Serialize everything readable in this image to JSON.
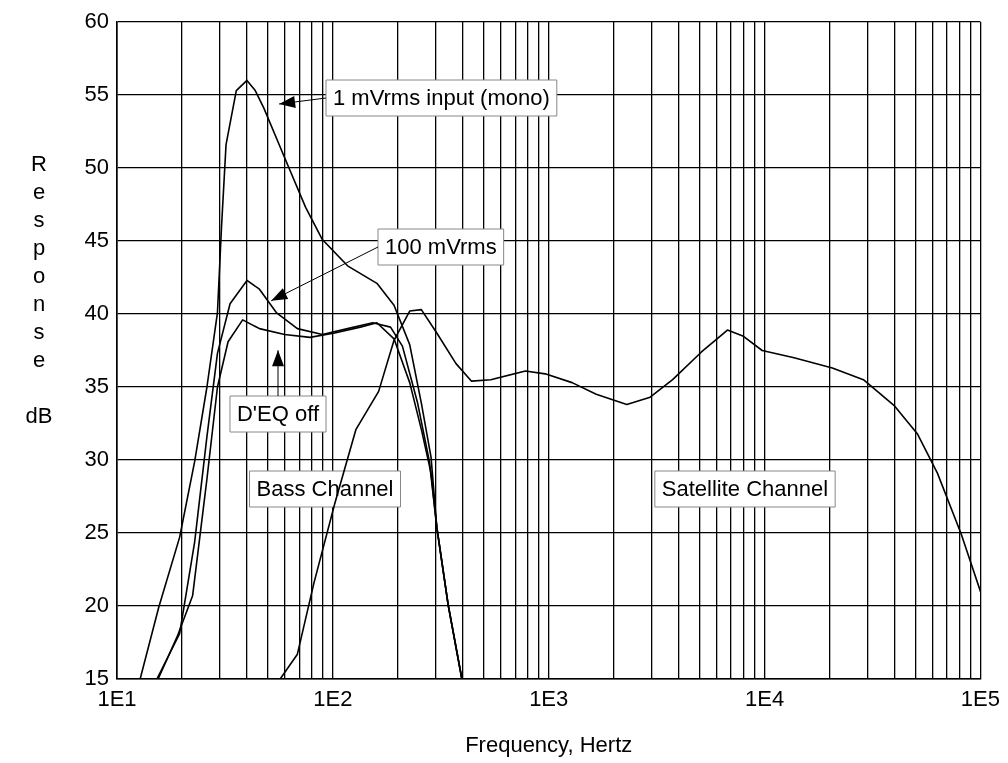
{
  "chart_data": {
    "type": "line",
    "xlabel": "Frequency, Hertz",
    "ylabel": "Response dB",
    "log": "x",
    "grid": true,
    "marker": "none",
    "line_style": "solid",
    "xlim": [
      10,
      100000
    ],
    "ylim": [
      15,
      60
    ],
    "xticks": [
      {
        "value": 10,
        "label": "1E1"
      },
      {
        "value": 20,
        "label": null
      },
      {
        "value": 30,
        "label": null
      },
      {
        "value": 40,
        "label": null
      },
      {
        "value": 50,
        "label": null
      },
      {
        "value": 60,
        "label": null
      },
      {
        "value": 70,
        "label": null
      },
      {
        "value": 80,
        "label": null
      },
      {
        "value": 90,
        "label": null
      },
      {
        "value": 100,
        "label": "1E2"
      },
      {
        "value": 200,
        "label": null
      },
      {
        "value": 300,
        "label": null
      },
      {
        "value": 400,
        "label": null
      },
      {
        "value": 500,
        "label": null
      },
      {
        "value": 600,
        "label": null
      },
      {
        "value": 700,
        "label": null
      },
      {
        "value": 800,
        "label": null
      },
      {
        "value": 900,
        "label": null
      },
      {
        "value": 1000,
        "label": "1E3"
      },
      {
        "value": 2000,
        "label": null
      },
      {
        "value": 3000,
        "label": null
      },
      {
        "value": 4000,
        "label": null
      },
      {
        "value": 5000,
        "label": null
      },
      {
        "value": 6000,
        "label": null
      },
      {
        "value": 7000,
        "label": null
      },
      {
        "value": 8000,
        "label": null
      },
      {
        "value": 9000,
        "label": null
      },
      {
        "value": 10000,
        "label": "1E4"
      },
      {
        "value": 20000,
        "label": null
      },
      {
        "value": 30000,
        "label": null
      },
      {
        "value": 40000,
        "label": null
      },
      {
        "value": 50000,
        "label": null
      },
      {
        "value": 60000,
        "label": null
      },
      {
        "value": 70000,
        "label": null
      },
      {
        "value": 80000,
        "label": null
      },
      {
        "value": 90000,
        "label": null
      },
      {
        "value": 100000,
        "label": "1E5"
      }
    ],
    "yticks": [
      15,
      20,
      25,
      30,
      35,
      40,
      45,
      50,
      55,
      60
    ],
    "annotations": [
      "Bass Channel",
      "Satellite Channel"
    ],
    "series": [
      {
        "name": "1 mVrms input (mono)",
        "color": "#000000",
        "x": [
          12.8,
          15.6,
          19.5,
          22.9,
          26.1,
          29.2,
          30.5,
          32,
          35.7,
          40,
          43.7,
          47.9,
          59.8,
          74.8,
          89.4,
          117,
          160,
          192,
          227,
          257,
          285,
          303,
          342,
          396
        ],
        "values": [
          15,
          19.9,
          24.7,
          29.9,
          35,
          40.1,
          46,
          51.6,
          55.3,
          56,
          55.3,
          54.1,
          50.7,
          47.3,
          45.1,
          43.3,
          42.1,
          40.6,
          37.9,
          33.9,
          30.2,
          25.4,
          20.1,
          15
        ]
      },
      {
        "name": "100 mVrms",
        "color": "#000000",
        "x": [
          15.3,
          19.5,
          22.9,
          26.1,
          29.2,
          33.4,
          40,
          45.7,
          54.7,
          68.5,
          89.4,
          117,
          153,
          185,
          210,
          247,
          280,
          303,
          342,
          396
        ],
        "values": [
          15,
          18.1,
          24.4,
          31.6,
          37.3,
          40.7,
          42.3,
          41.7,
          40.1,
          39,
          38.6,
          39,
          39.4,
          39.1,
          37.8,
          33.9,
          29.9,
          25.4,
          20.1,
          15
        ]
      },
      {
        "name": "D'EQ off",
        "color": "#000000",
        "x": [
          15.5,
          19,
          22.4,
          26.1,
          29.2,
          32.7,
          38.2,
          45.7,
          59.8,
          78.3,
          102,
          134,
          160,
          192,
          227,
          257,
          285,
          303,
          342,
          396
        ],
        "values": [
          15,
          17.9,
          20.7,
          28.7,
          35,
          38.1,
          39.6,
          39,
          38.6,
          38.4,
          38.7,
          39.1,
          39.4,
          38.3,
          35.3,
          32.1,
          29.1,
          25.4,
          20.1,
          15
        ]
      },
      {
        "color": "#000000",
        "x": [
          57,
          68.5,
          81.8,
          102,
          128,
          163,
          192,
          227,
          257,
          303,
          372,
          439,
          539,
          780,
          963,
          1283,
          1660,
          2300,
          2950,
          3750,
          5100,
          6730,
          7930,
          9750,
          13700,
          20600,
          28700,
          40000,
          51000,
          63200,
          81600,
          100000
        ],
        "values": [
          15,
          16.7,
          21.6,
          27,
          32.1,
          34.7,
          38.2,
          40.2,
          40.3,
          38.7,
          36.6,
          35.4,
          35.5,
          36.1,
          35.9,
          35.3,
          34.5,
          33.8,
          34.3,
          35.5,
          37.4,
          38.9,
          38.5,
          37.5,
          37,
          36.3,
          35.5,
          33.7,
          31.8,
          29.1,
          24.9,
          21
        ]
      }
    ]
  }
}
